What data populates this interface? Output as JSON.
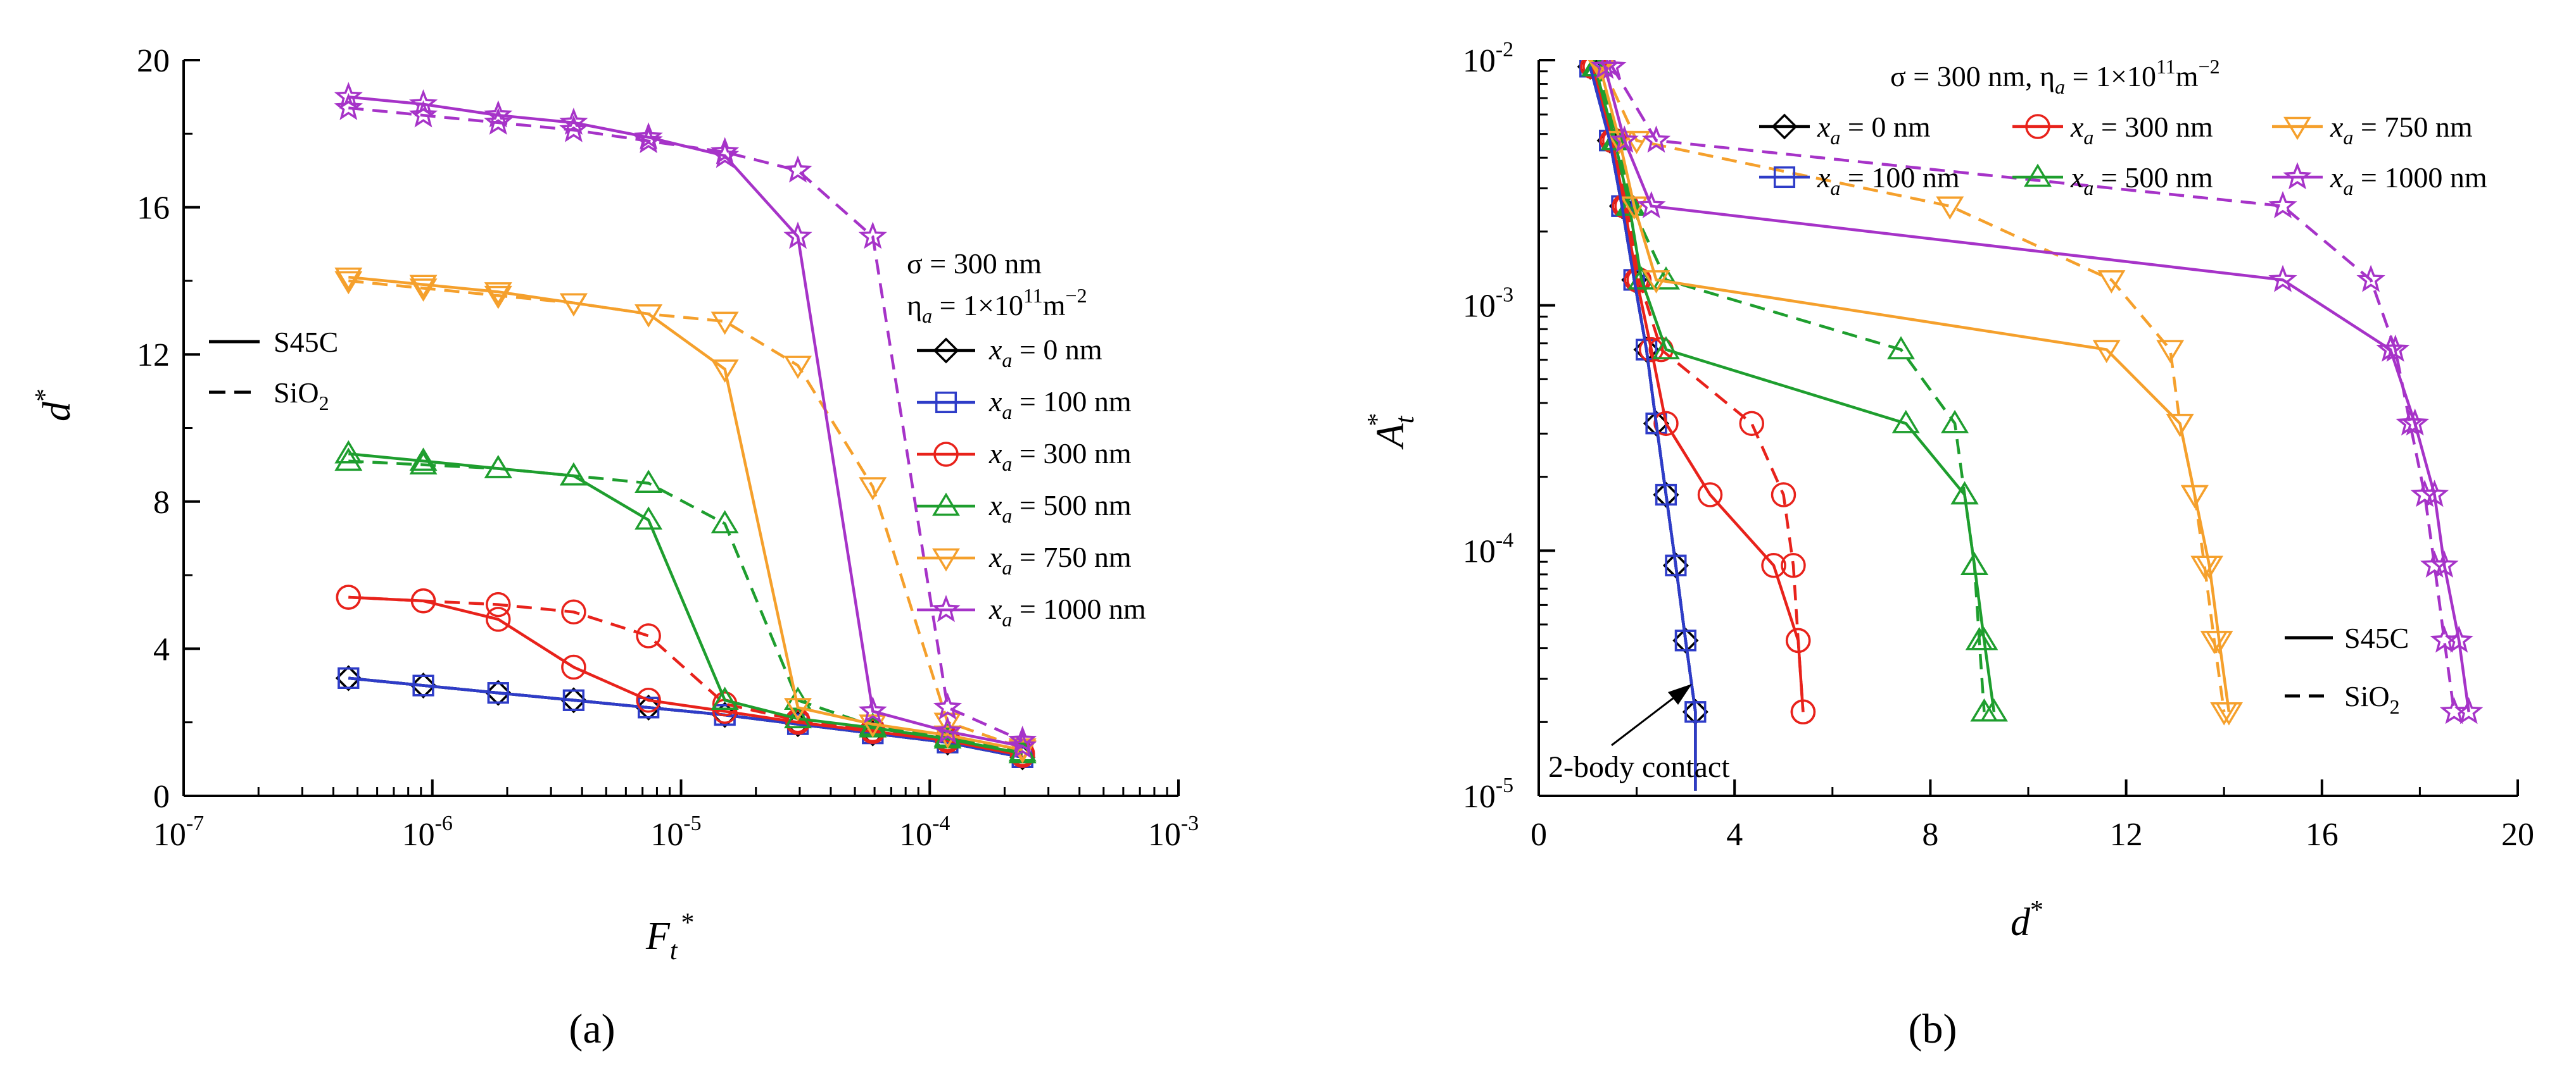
{
  "chart_data": [
    {
      "panel": "a",
      "type": "line",
      "x_scale": "log",
      "xlabel_main": "F",
      "xlabel_sub": "t",
      "xlabel_sup": "*",
      "ylabel_main": "d",
      "ylabel_sup": "*",
      "xlim_exp": [
        -7,
        -3
      ],
      "ylim": [
        0,
        20
      ],
      "x_ticks": [
        {
          "base": "10",
          "exp": "-7"
        },
        {
          "base": "10",
          "exp": "-6"
        },
        {
          "base": "10",
          "exp": "-5"
        },
        {
          "base": "10",
          "exp": "-4"
        },
        {
          "base": "10",
          "exp": "-3"
        }
      ],
      "y_ticks": [
        "0",
        "4",
        "8",
        "12",
        "16",
        "20"
      ],
      "x": [
        4.6e-07,
        9.2e-07,
        1.84e-06,
        3.7e-06,
        7.4e-06,
        1.5e-05,
        2.95e-05,
        5.9e-05,
        0.000118,
        0.000236
      ],
      "params": {
        "sigma": "σ = 300 nm",
        "eta_main": "η",
        "eta_sub": "a",
        "eta_value": " = 1×10",
        "eta_exp": "11",
        "eta_unit": "m",
        "eta_unit_exp": "−2"
      },
      "material_legend": [
        {
          "label": "S45C",
          "dash": false
        },
        {
          "label_main": "SiO",
          "label_sub": "2",
          "dash": true
        }
      ],
      "series": [
        {
          "name_main": "x",
          "name_sub": "a",
          "name_value": " = 0 nm",
          "color": "#000000",
          "marker": "diamond",
          "solid": [
            3.2,
            3.0,
            2.8,
            2.6,
            2.4,
            2.2,
            1.95,
            1.7,
            1.45,
            1.05
          ],
          "dashed": [
            3.2,
            3.0,
            2.8,
            2.6,
            2.4,
            2.2,
            1.95,
            1.7,
            1.45,
            1.05
          ]
        },
        {
          "name_main": "x",
          "name_sub": "a",
          "name_value": " = 100 nm",
          "color": "#2e3cc8",
          "marker": "square",
          "solid": [
            3.2,
            3.0,
            2.8,
            2.6,
            2.4,
            2.2,
            1.95,
            1.7,
            1.45,
            1.05
          ],
          "dashed": [
            3.2,
            3.0,
            2.8,
            2.6,
            2.4,
            2.2,
            1.95,
            1.7,
            1.45,
            1.05
          ]
        },
        {
          "name_main": "x",
          "name_sub": "a",
          "name_value": " = 300 nm",
          "color": "#e8221b",
          "marker": "circle",
          "solid": [
            5.4,
            5.3,
            4.8,
            3.5,
            2.6,
            2.3,
            2.0,
            1.75,
            1.5,
            1.1
          ],
          "dashed": [
            5.4,
            5.3,
            5.2,
            5.0,
            4.35,
            2.5,
            2.05,
            1.8,
            1.55,
            1.15
          ]
        },
        {
          "name_main": "x",
          "name_sub": "a",
          "name_value": " = 500 nm",
          "color": "#1e9e2e",
          "marker": "triangle-up",
          "solid": [
            9.3,
            9.1,
            8.9,
            8.7,
            7.5,
            2.6,
            2.1,
            1.85,
            1.55,
            1.15
          ],
          "dashed": [
            9.1,
            9.0,
            8.9,
            8.7,
            8.5,
            7.4,
            2.6,
            1.9,
            1.6,
            1.2
          ]
        },
        {
          "name_main": "x",
          "name_sub": "a",
          "name_value": " = 750 nm",
          "color": "#f5a02c",
          "marker": "triangle-down",
          "solid": [
            14.1,
            13.9,
            13.7,
            13.4,
            13.1,
            11.6,
            2.4,
            1.95,
            1.65,
            1.25
          ],
          "dashed": [
            14.0,
            13.8,
            13.6,
            13.4,
            13.1,
            12.9,
            11.7,
            8.4,
            2.0,
            1.3
          ]
        },
        {
          "name_main": "x",
          "name_sub": "a",
          "name_value": " = 1000 nm",
          "color": "#a633c8",
          "marker": "star",
          "solid": [
            19.0,
            18.8,
            18.5,
            18.3,
            17.9,
            17.4,
            15.2,
            2.3,
            1.75,
            1.35
          ],
          "dashed": [
            18.7,
            18.5,
            18.3,
            18.1,
            17.8,
            17.5,
            17.0,
            15.2,
            2.4,
            1.5
          ]
        }
      ]
    },
    {
      "panel": "b",
      "type": "line",
      "y_scale": "log",
      "xlabel_main": "d",
      "xlabel_sup": "*",
      "ylabel_main": "A",
      "ylabel_sub": "t",
      "ylabel_sup": "*",
      "xlim": [
        0,
        20
      ],
      "ylim_exp": [
        -5,
        -2
      ],
      "x_ticks": [
        "0",
        "4",
        "8",
        "12",
        "16",
        "20"
      ],
      "y_ticks": [
        {
          "base": "10",
          "exp": "-5"
        },
        {
          "base": "10",
          "exp": "-4"
        },
        {
          "base": "10",
          "exp": "-3"
        },
        {
          "base": "10",
          "exp": "-2"
        }
      ],
      "y": [
        0.0094,
        0.0047,
        0.00254,
        0.00127,
        0.00066,
        0.00033,
        0.000169,
        8.7e-05,
        4.3e-05,
        2.2e-05
      ],
      "params": {
        "sigma_eta": "σ = 300 nm, η",
        "eta_sub": "a",
        "eta_value": " = 1×10",
        "eta_exp": "11",
        "eta_unit": "m",
        "eta_unit_exp": "−2"
      },
      "material_legend": [
        {
          "label": "S45C",
          "dash": false
        },
        {
          "label_main": "SiO",
          "label_sub": "2",
          "dash": true
        }
      ],
      "annotation": "2-body contact",
      "series": [
        {
          "name_main": "x",
          "name_sub": "a",
          "name_value": " = 0 nm",
          "color": "#000000",
          "marker": "diamond",
          "solid": [
            1.05,
            1.45,
            1.7,
            1.95,
            2.2,
            2.4,
            2.6,
            2.8,
            3.0,
            3.2
          ],
          "dashed": [
            1.05,
            1.45,
            1.7,
            1.95,
            2.2,
            2.4,
            2.6,
            2.8,
            3.0,
            3.2
          ],
          "extra_solid_y": [
            1.05e-05
          ]
        },
        {
          "name_main": "x",
          "name_sub": "a",
          "name_value": " = 100 nm",
          "color": "#2e3cc8",
          "marker": "square",
          "solid": [
            1.05,
            1.45,
            1.7,
            1.95,
            2.2,
            2.4,
            2.6,
            2.8,
            3.0,
            3.2
          ],
          "dashed": [
            1.05,
            1.45,
            1.7,
            1.95,
            2.2,
            2.4,
            2.6,
            2.8,
            3.0,
            3.2
          ]
        },
        {
          "name_main": "x",
          "name_sub": "a",
          "name_value": " = 300 nm",
          "color": "#e8221b",
          "marker": "circle",
          "solid": [
            1.1,
            1.5,
            1.75,
            2.0,
            2.3,
            2.6,
            3.5,
            4.8,
            5.3,
            5.4
          ],
          "dashed": [
            1.15,
            1.55,
            1.8,
            2.05,
            2.5,
            4.35,
            5.0,
            5.2,
            5.3,
            5.4
          ]
        },
        {
          "name_main": "x",
          "name_sub": "a",
          "name_value": " = 500 nm",
          "color": "#1e9e2e",
          "marker": "triangle-up",
          "solid": [
            1.15,
            1.55,
            1.85,
            2.1,
            2.6,
            7.5,
            8.7,
            8.9,
            9.1,
            9.3
          ],
          "dashed": [
            1.2,
            1.6,
            1.9,
            2.6,
            7.4,
            8.5,
            8.7,
            8.9,
            9.0,
            9.1
          ]
        },
        {
          "name_main": "x",
          "name_sub": "a",
          "name_value": " = 750 nm",
          "color": "#f5a02c",
          "marker": "triangle-down",
          "solid": [
            1.25,
            1.65,
            1.95,
            2.4,
            11.6,
            13.1,
            13.4,
            13.7,
            13.9,
            14.1
          ],
          "dashed": [
            1.3,
            2.0,
            8.4,
            11.7,
            12.9,
            13.1,
            13.4,
            13.6,
            13.8,
            14.0
          ]
        },
        {
          "name_main": "x",
          "name_sub": "a",
          "name_value": " = 1000 nm",
          "color": "#a633c8",
          "marker": "star",
          "solid": [
            1.35,
            1.75,
            2.3,
            15.2,
            17.4,
            17.9,
            18.3,
            18.5,
            18.8,
            19.0
          ],
          "dashed": [
            1.5,
            2.4,
            15.2,
            17.0,
            17.5,
            17.8,
            18.1,
            18.3,
            18.5,
            18.7
          ]
        }
      ]
    }
  ],
  "captions": [
    "(a)",
    "(b)"
  ]
}
